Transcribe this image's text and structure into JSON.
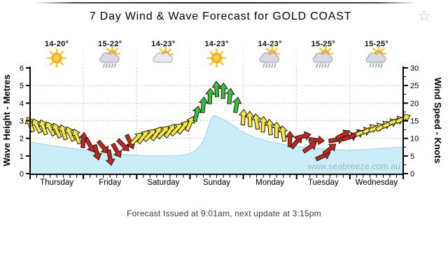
{
  "page": {
    "title": "7 Day Wind & Wave Forecast for GOLD COAST",
    "footer": "Forecast Issued at 9:01am, next update at 3:15pm",
    "star_icon": "☆"
  },
  "days": [
    {
      "name": "Thursday",
      "temp": "14-20°",
      "icon": "sunny"
    },
    {
      "name": "Friday",
      "temp": "15-22°",
      "icon": "sun-shower"
    },
    {
      "name": "Saturday",
      "temp": "14-23°",
      "icon": "partly-cloudy"
    },
    {
      "name": "Sunday",
      "temp": "14-23°",
      "icon": "sunny"
    },
    {
      "name": "Monday",
      "temp": "14-23°",
      "icon": "sun-shower"
    },
    {
      "name": "Tuesday",
      "temp": "15-25°",
      "icon": "sun-shower"
    },
    {
      "name": "Wednesday",
      "temp": "15-25°",
      "icon": "sun-shower"
    }
  ],
  "chart_data": {
    "type": "area+wind-arrows",
    "title": "7 Day Wind & Wave Forecast for GOLD COAST",
    "categories": [
      "Thursday",
      "Friday",
      "Saturday",
      "Sunday",
      "Monday",
      "Tuesday",
      "Wednesday"
    ],
    "left_axis": {
      "label": "Wave Height - Metres",
      "min": 0,
      "max": 6,
      "tick_step": 1
    },
    "right_axis": {
      "label": "Wind Speed - Knots",
      "min": 0,
      "max": 30,
      "tick_step": 5
    },
    "grid": {
      "horizontal_every": 1,
      "vertical": "day-boundaries",
      "style": "dotted"
    },
    "watermark": "www.seabreeze.com.au",
    "colors": {
      "wave_fill": "#c9eef9",
      "wave_edge": "#a9cdd8",
      "arrow_red": "#cb2519",
      "arrow_yellow": "#f7e93c",
      "arrow_green": "#36c436",
      "arrow_outline": "#1a1a1a",
      "grid": "#bbbbbb",
      "axis": "#000000",
      "watermark": "#9cafba",
      "temp_text": "#111111"
    },
    "wave_height_m": [
      [
        0.0,
        1.8
      ],
      [
        0.05,
        1.62
      ],
      [
        0.1,
        1.47
      ],
      [
        0.143,
        1.34
      ],
      [
        0.19,
        1.2
      ],
      [
        0.24,
        1.1
      ],
      [
        0.286,
        1.04
      ],
      [
        0.34,
        1.0
      ],
      [
        0.39,
        1.02
      ],
      [
        0.42,
        1.1
      ],
      [
        0.445,
        1.35
      ],
      [
        0.465,
        1.9
      ],
      [
        0.478,
        2.7
      ],
      [
        0.49,
        3.25
      ],
      [
        0.51,
        3.15
      ],
      [
        0.54,
        2.8
      ],
      [
        0.571,
        2.35
      ],
      [
        0.61,
        2.0
      ],
      [
        0.65,
        1.78
      ],
      [
        0.7,
        1.6
      ],
      [
        0.75,
        1.47
      ],
      [
        0.8,
        1.38
      ],
      [
        0.857,
        1.33
      ],
      [
        0.9,
        1.37
      ],
      [
        0.95,
        1.44
      ],
      [
        1.0,
        1.52
      ]
    ],
    "wind_samples_format": [
      "t_fraction",
      "speed_knots",
      "arrow_dir_deg_0_is_up",
      "color_key"
    ],
    "wind_samples": [
      [
        0.0,
        14.0,
        -22,
        "y"
      ],
      [
        0.0179,
        13.6,
        -28,
        "y"
      ],
      [
        0.0357,
        13.2,
        -20,
        "y"
      ],
      [
        0.0536,
        12.8,
        -30,
        "y"
      ],
      [
        0.0714,
        12.3,
        -24,
        "y"
      ],
      [
        0.0893,
        11.8,
        -18,
        "y"
      ],
      [
        0.1071,
        11.3,
        -26,
        "y"
      ],
      [
        0.125,
        10.6,
        -22,
        "y"
      ],
      [
        0.1429,
        9.5,
        5,
        "r"
      ],
      [
        0.1607,
        8.0,
        150,
        "r"
      ],
      [
        0.1786,
        6.0,
        165,
        "r"
      ],
      [
        0.1964,
        7.5,
        140,
        "r"
      ],
      [
        0.2143,
        4.5,
        170,
        "r"
      ],
      [
        0.2321,
        6.5,
        150,
        "r"
      ],
      [
        0.25,
        8.0,
        135,
        "r"
      ],
      [
        0.2679,
        9.0,
        155,
        "r"
      ],
      [
        0.2857,
        10.0,
        45,
        "y"
      ],
      [
        0.3036,
        10.5,
        38,
        "y"
      ],
      [
        0.3214,
        11.0,
        44,
        "y"
      ],
      [
        0.3393,
        11.4,
        35,
        "y"
      ],
      [
        0.3571,
        11.8,
        42,
        "y"
      ],
      [
        0.375,
        12.2,
        36,
        "y"
      ],
      [
        0.3929,
        12.6,
        43,
        "y"
      ],
      [
        0.4107,
        13.2,
        38,
        "y"
      ],
      [
        0.4286,
        14.2,
        24,
        "y"
      ],
      [
        0.4464,
        17.0,
        14,
        "g"
      ],
      [
        0.4643,
        19.5,
        6,
        "g"
      ],
      [
        0.4821,
        22.0,
        2,
        "g"
      ],
      [
        0.5,
        24.0,
        -3,
        "g"
      ],
      [
        0.5179,
        23.5,
        2,
        "g"
      ],
      [
        0.5357,
        22.0,
        6,
        "g"
      ],
      [
        0.5536,
        19.5,
        10,
        "g"
      ],
      [
        0.5714,
        16.0,
        4,
        "y"
      ],
      [
        0.5893,
        15.5,
        -2,
        "y"
      ],
      [
        0.6071,
        14.8,
        -8,
        "y"
      ],
      [
        0.625,
        14.0,
        3,
        "y"
      ],
      [
        0.6429,
        13.2,
        -5,
        "y"
      ],
      [
        0.6607,
        12.4,
        2,
        "y"
      ],
      [
        0.6786,
        11.4,
        -8,
        "y"
      ],
      [
        0.6964,
        9.8,
        0,
        "r"
      ],
      [
        0.7143,
        9.0,
        40,
        "r"
      ],
      [
        0.7321,
        10.6,
        75,
        "r"
      ],
      [
        0.75,
        7.5,
        55,
        "r"
      ],
      [
        0.7679,
        9.5,
        95,
        "r"
      ],
      [
        0.7857,
        5.0,
        65,
        "r"
      ],
      [
        0.8036,
        7.0,
        50,
        "r"
      ],
      [
        0.8214,
        9.6,
        80,
        "r"
      ],
      [
        0.8393,
        11.0,
        60,
        "r"
      ],
      [
        0.8571,
        10.4,
        72,
        "r"
      ],
      [
        0.875,
        11.2,
        66,
        "r"
      ],
      [
        0.8929,
        11.8,
        70,
        "y"
      ],
      [
        0.9107,
        12.6,
        63,
        "y"
      ],
      [
        0.9286,
        13.0,
        68,
        "y"
      ],
      [
        0.9464,
        13.5,
        60,
        "y"
      ],
      [
        0.9643,
        14.2,
        66,
        "y"
      ],
      [
        0.9821,
        15.0,
        70,
        "y"
      ],
      [
        1.0,
        15.6,
        64,
        "y"
      ]
    ]
  }
}
